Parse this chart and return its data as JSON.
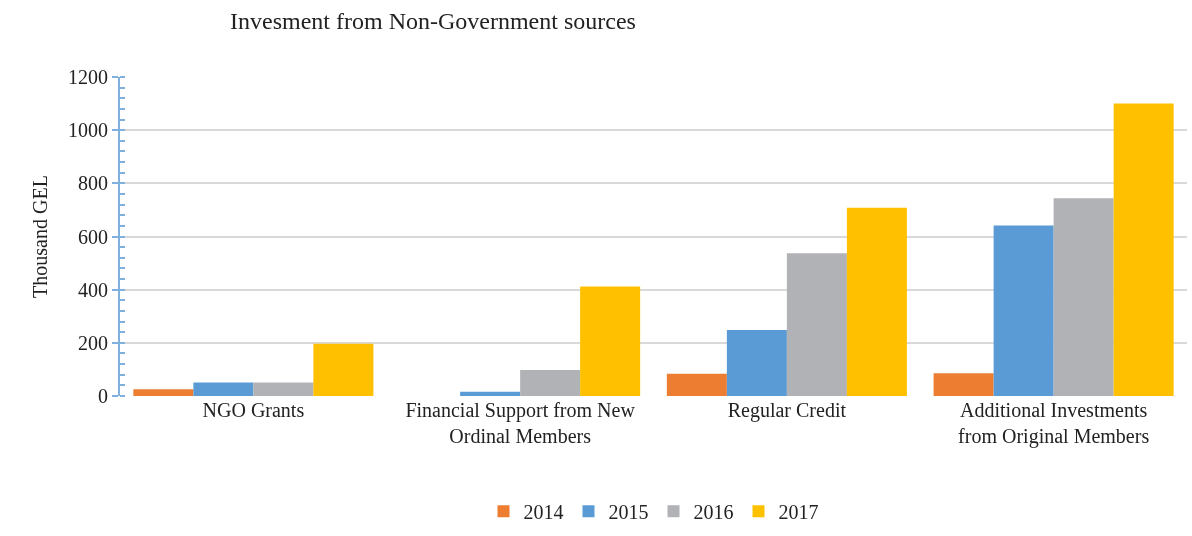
{
  "chart_data": {
    "type": "bar",
    "title": "Invesment from Non-Government sources",
    "ylabel": "Thousand GEL",
    "categories": [
      "NGO Grants",
      "Financial Support from New Ordinal Members",
      "Regular Credit",
      "Additional Investments from Original Members"
    ],
    "series": [
      {
        "name": "2014",
        "color": "#ed7d31",
        "values": [
          25,
          0,
          84,
          86
        ]
      },
      {
        "name": "2015",
        "color": "#5b9bd5",
        "values": [
          51,
          16,
          248,
          641
        ]
      },
      {
        "name": "2016",
        "color": "#b1b2b5",
        "values": [
          51,
          98,
          537,
          744
        ]
      },
      {
        "name": "2017",
        "color": "#ffc000",
        "values": [
          197,
          412,
          708,
          1100
        ]
      }
    ],
    "ylim": [
      0,
      1200
    ],
    "yticks": [
      0,
      200,
      400,
      600,
      800,
      1000,
      1200
    ],
    "grid": "y",
    "legend": "bottom"
  }
}
